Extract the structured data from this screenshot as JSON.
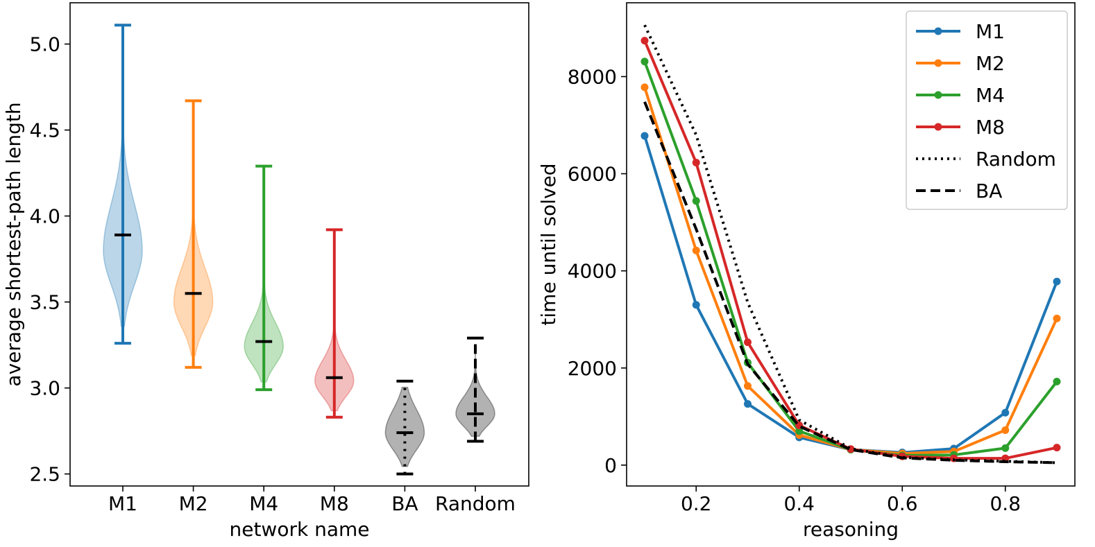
{
  "chart_data": [
    {
      "type": "violin",
      "xlabel": "network name",
      "ylabel": "average shortest-path length",
      "ylim": [
        2.43,
        5.24
      ],
      "yticks": [
        "2.5",
        "3.0",
        "3.5",
        "4.0",
        "4.5",
        "5.0"
      ],
      "categories": [
        "M1",
        "M2",
        "M4",
        "M8",
        "BA",
        "Random"
      ],
      "grid": false,
      "violins": [
        {
          "name": "M1",
          "color": "#1f77b4",
          "min": 3.26,
          "max": 5.11,
          "median": 3.89,
          "peak": 3.8,
          "linestyle": "solid"
        },
        {
          "name": "M2",
          "color": "#ff7f0e",
          "min": 3.12,
          "max": 4.67,
          "median": 3.55,
          "peak": 3.5,
          "linestyle": "solid"
        },
        {
          "name": "M4",
          "color": "#2ca02c",
          "min": 2.99,
          "max": 4.29,
          "median": 3.27,
          "peak": 3.24,
          "linestyle": "solid"
        },
        {
          "name": "M8",
          "color": "#d62728",
          "min": 2.83,
          "max": 3.92,
          "median": 3.06,
          "peak": 3.04,
          "linestyle": "solid"
        },
        {
          "name": "BA",
          "color": "#000000",
          "min": 2.5,
          "max": 3.04,
          "median": 2.74,
          "peak": 2.74,
          "linestyle": "dotted"
        },
        {
          "name": "Random",
          "color": "#000000",
          "min": 2.69,
          "max": 3.29,
          "median": 2.85,
          "peak": 2.85,
          "linestyle": "dashed"
        }
      ]
    },
    {
      "type": "line",
      "xlabel": "reasoning",
      "ylabel": "time until solved",
      "xlim": [
        0.065,
        0.935
      ],
      "ylim": [
        -430,
        9520
      ],
      "xticks": [
        "0.2",
        "0.4",
        "0.6",
        "0.8"
      ],
      "yticks": [
        "0",
        "2000",
        "4000",
        "6000",
        "8000"
      ],
      "grid": false,
      "legend": "top-right",
      "x": [
        0.1,
        0.2,
        0.3,
        0.4,
        0.5,
        0.6,
        0.7,
        0.8,
        0.9
      ],
      "series": [
        {
          "name": "M1",
          "color": "#1f77b4",
          "style": "solid",
          "markers": true,
          "values": [
            6780,
            3300,
            1260,
            570,
            320,
            260,
            340,
            1080,
            3780
          ]
        },
        {
          "name": "M2",
          "color": "#ff7f0e",
          "style": "solid",
          "markers": true,
          "values": [
            7780,
            4420,
            1630,
            620,
            320,
            240,
            280,
            720,
            3020
          ]
        },
        {
          "name": "M4",
          "color": "#2ca02c",
          "style": "solid",
          "markers": true,
          "values": [
            8310,
            5440,
            2110,
            700,
            320,
            200,
            210,
            350,
            1720
          ]
        },
        {
          "name": "M8",
          "color": "#d62728",
          "style": "solid",
          "markers": true,
          "values": [
            8740,
            6230,
            2530,
            820,
            330,
            180,
            140,
            140,
            360
          ]
        },
        {
          "name": "Random",
          "color": "#000000",
          "style": "dotted",
          "markers": false,
          "values": [
            9060,
            6800,
            3350,
            930,
            340,
            160,
            110,
            80,
            50
          ]
        },
        {
          "name": "BA",
          "color": "#000000",
          "style": "dashed",
          "markers": false,
          "values": [
            7480,
            4860,
            2080,
            800,
            320,
            150,
            100,
            70,
            50
          ]
        }
      ]
    }
  ]
}
